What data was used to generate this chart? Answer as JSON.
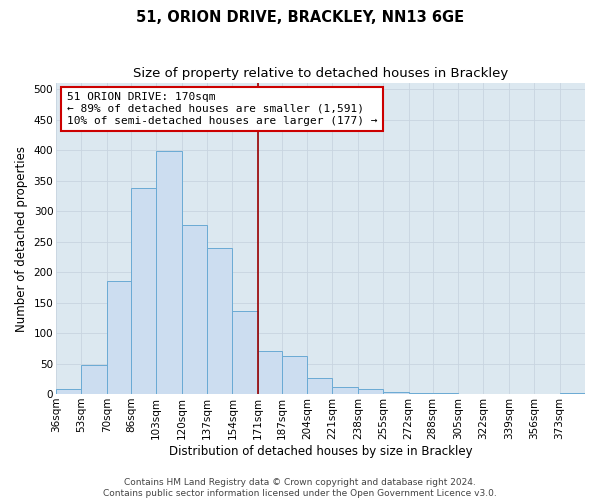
{
  "title": "51, ORION DRIVE, BRACKLEY, NN13 6GE",
  "subtitle": "Size of property relative to detached houses in Brackley",
  "xlabel": "Distribution of detached houses by size in Brackley",
  "ylabel": "Number of detached properties",
  "bin_labels": [
    "36sqm",
    "53sqm",
    "70sqm",
    "86sqm",
    "103sqm",
    "120sqm",
    "137sqm",
    "154sqm",
    "171sqm",
    "187sqm",
    "204sqm",
    "221sqm",
    "238sqm",
    "255sqm",
    "272sqm",
    "288sqm",
    "305sqm",
    "322sqm",
    "339sqm",
    "356sqm",
    "373sqm"
  ],
  "bin_edges": [
    36,
    53,
    70,
    86,
    103,
    120,
    137,
    154,
    171,
    187,
    204,
    221,
    238,
    255,
    272,
    288,
    305,
    322,
    339,
    356,
    373,
    390
  ],
  "values": [
    8,
    47,
    185,
    338,
    398,
    278,
    240,
    137,
    70,
    63,
    27,
    12,
    8,
    4,
    2,
    1,
    0,
    0,
    0,
    0,
    2
  ],
  "bar_color": "#ccddf0",
  "bar_edge_color": "#6aaad4",
  "vline_x": 171,
  "vline_color": "#990000",
  "annotation_line1": "51 ORION DRIVE: 170sqm",
  "annotation_line2": "← 89% of detached houses are smaller (1,591)",
  "annotation_line3": "10% of semi-detached houses are larger (177) →",
  "annotation_box_color": "#ffffff",
  "annotation_box_edge_color": "#cc0000",
  "ylim": [
    0,
    510
  ],
  "yticks": [
    0,
    50,
    100,
    150,
    200,
    250,
    300,
    350,
    400,
    450,
    500
  ],
  "grid_color": "#c8d4e0",
  "background_color": "#dce8f0",
  "fig_background": "#ffffff",
  "footer_text": "Contains HM Land Registry data © Crown copyright and database right 2024.\nContains public sector information licensed under the Open Government Licence v3.0.",
  "title_fontsize": 10.5,
  "subtitle_fontsize": 9.5,
  "axis_label_fontsize": 8.5,
  "tick_fontsize": 7.5,
  "annotation_fontsize": 8,
  "footer_fontsize": 6.5
}
